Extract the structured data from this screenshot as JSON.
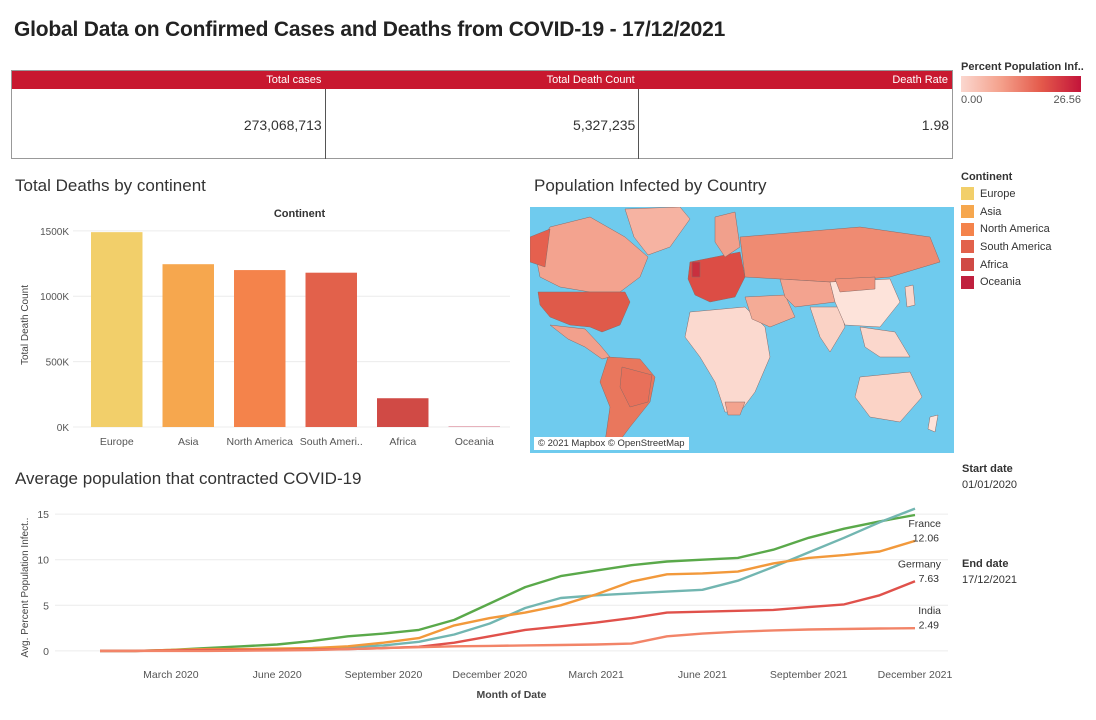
{
  "title": "Global Data on Confirmed Cases and Deaths from COVID-19 - 17/12/2021",
  "kpis": {
    "headers": [
      "Total cases",
      "Total Death Count",
      "Death Rate"
    ],
    "values": [
      "273,068,713",
      "5,327,235",
      "1.98"
    ]
  },
  "percent_legend": {
    "title": "Percent Population Inf..",
    "min": "0.00",
    "max": "26.56",
    "colors": [
      "#fbd7cf",
      "#c3143a"
    ]
  },
  "continent_legend": {
    "title": "Continent",
    "items": [
      {
        "label": "Europe",
        "color": "#f2cf6a"
      },
      {
        "label": "Asia",
        "color": "#f6a74e"
      },
      {
        "label": "North America",
        "color": "#f4834b"
      },
      {
        "label": "South America",
        "color": "#e2614b"
      },
      {
        "label": "Africa",
        "color": "#d04a45"
      },
      {
        "label": "Oceania",
        "color": "#c0203e"
      }
    ]
  },
  "bar_section_title": "Total Deaths by continent",
  "map_section_title": "Population Infected by Country",
  "map_attribution": "© 2021 Mapbox © OpenStreetMap",
  "line_section_title": "Average population that contracted COVID-19",
  "start_date": {
    "label": "Start date",
    "value": "01/01/2020"
  },
  "end_date": {
    "label": "End date",
    "value": "17/12/2021"
  },
  "chart_data": [
    {
      "type": "bar",
      "title": "Continent",
      "ylabel": "Total Death Count",
      "categories": [
        "Europe",
        "Asia",
        "North America",
        "South Ameri..",
        "Africa",
        "Oceania"
      ],
      "values": [
        1490000,
        1245000,
        1200000,
        1180000,
        220000,
        2500
      ],
      "colors": [
        "#f2cf6a",
        "#f6a74e",
        "#f4834b",
        "#e2614b",
        "#d04a45",
        "#c0203e"
      ],
      "yticks": [
        0,
        500000,
        1000000,
        1500000
      ],
      "ytick_labels": [
        "0K",
        "500K",
        "1000K",
        "1500K"
      ],
      "ylim": [
        0,
        1560000
      ]
    },
    {
      "type": "line",
      "xlabel": "Month of Date",
      "ylabel": "Avg. Percent Population Infect..",
      "x": [
        "2020-01",
        "2020-02",
        "2020-03",
        "2020-04",
        "2020-05",
        "2020-06",
        "2020-07",
        "2020-08",
        "2020-09",
        "2020-10",
        "2020-11",
        "2020-12",
        "2021-01",
        "2021-02",
        "2021-03",
        "2021-04",
        "2021-05",
        "2021-06",
        "2021-07",
        "2021-08",
        "2021-09",
        "2021-10",
        "2021-11",
        "2021-12"
      ],
      "xtick_labels": [
        {
          "month": "2020-03",
          "label": "March 2020"
        },
        {
          "month": "2020-06",
          "label": "June 2020"
        },
        {
          "month": "2020-09",
          "label": "September 2020"
        },
        {
          "month": "2020-12",
          "label": "December 2020"
        },
        {
          "month": "2021-03",
          "label": "March 2021"
        },
        {
          "month": "2021-06",
          "label": "June 2021"
        },
        {
          "month": "2021-09",
          "label": "September 2021"
        },
        {
          "month": "2021-12",
          "label": "December 2021"
        }
      ],
      "yticks": [
        0,
        5,
        10,
        15
      ],
      "ylim": [
        -1,
        16
      ],
      "series": [
        {
          "color": "#5aa94a",
          "values": [
            0,
            0,
            0.1,
            0.3,
            0.5,
            0.7,
            1.1,
            1.6,
            1.9,
            2.3,
            3.4,
            5.2,
            7.0,
            8.2,
            8.8,
            9.4,
            9.8,
            10.0,
            10.2,
            11.1,
            12.4,
            13.4,
            14.2,
            14.9
          ]
        },
        {
          "color": "#72b6b1",
          "values": [
            0,
            0,
            0.05,
            0.1,
            0.15,
            0.2,
            0.3,
            0.4,
            0.6,
            1.0,
            1.8,
            3.0,
            4.7,
            5.8,
            6.1,
            6.3,
            6.5,
            6.7,
            7.7,
            9.2,
            10.8,
            12.4,
            14.1,
            15.6
          ]
        },
        {
          "name": "France",
          "label": "12.06",
          "color": "#f2993b",
          "values": [
            0,
            0,
            0.1,
            0.2,
            0.2,
            0.25,
            0.3,
            0.5,
            0.9,
            1.4,
            2.8,
            3.6,
            4.2,
            5.0,
            6.2,
            7.6,
            8.4,
            8.5,
            8.7,
            9.6,
            10.2,
            10.5,
            10.9,
            12.06
          ]
        },
        {
          "name": "Germany",
          "label": "7.63",
          "color": "#e0514b",
          "values": [
            0,
            0,
            0.05,
            0.1,
            0.1,
            0.1,
            0.15,
            0.2,
            0.3,
            0.45,
            0.9,
            1.6,
            2.3,
            2.7,
            3.1,
            3.6,
            4.2,
            4.3,
            4.4,
            4.5,
            4.8,
            5.1,
            6.1,
            7.63
          ]
        },
        {
          "name": "India",
          "label": "2.49",
          "color": "#f28468",
          "values": [
            0,
            0,
            0,
            0,
            0.02,
            0.05,
            0.1,
            0.2,
            0.3,
            0.4,
            0.5,
            0.55,
            0.6,
            0.65,
            0.7,
            0.8,
            1.6,
            1.9,
            2.1,
            2.25,
            2.35,
            2.4,
            2.45,
            2.49
          ]
        }
      ]
    }
  ]
}
